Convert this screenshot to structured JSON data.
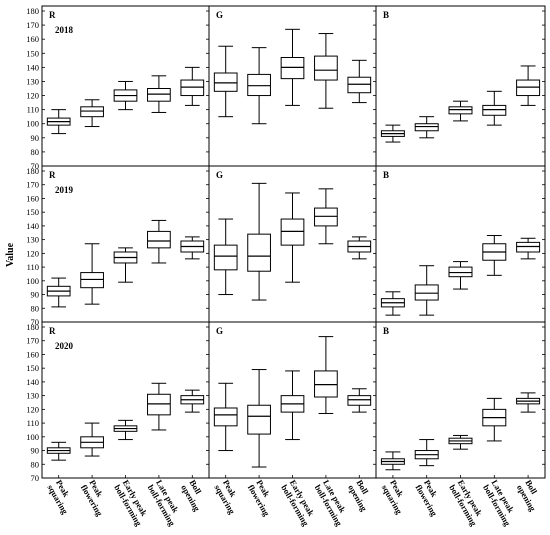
{
  "chart_data": {
    "type": "boxplot",
    "ylabel": "Value",
    "ylim": [
      70,
      180
    ],
    "yticks": [
      70,
      80,
      90,
      100,
      110,
      120,
      130,
      140,
      150,
      160,
      170,
      180
    ],
    "categories": [
      [
        "Peak",
        "squaring"
      ],
      [
        "Peak",
        "flowering"
      ],
      [
        "Early peak",
        "boll-forming"
      ],
      [
        "Late peak",
        "boll-forming"
      ],
      [
        "Boll",
        "opening"
      ]
    ],
    "rows": [
      {
        "year": "2018",
        "panels": [
          {
            "channel": "R",
            "boxes": [
              [
                93,
                99,
                101.5,
                104,
                110
              ],
              [
                98,
                105,
                109,
                112,
                117
              ],
              [
                110,
                116,
                120,
                124,
                130
              ],
              [
                108,
                116,
                121,
                125,
                134
              ],
              [
                113,
                120,
                126,
                131,
                140
              ]
            ]
          },
          {
            "channel": "G",
            "boxes": [
              [
                105,
                123,
                129,
                136,
                155
              ],
              [
                100,
                120,
                127,
                135,
                154
              ],
              [
                113,
                132,
                140,
                147,
                167
              ],
              [
                111,
                131,
                138,
                148,
                164
              ],
              [
                115,
                122,
                128,
                133,
                145
              ]
            ]
          },
          {
            "channel": "B",
            "boxes": [
              [
                87,
                91,
                93,
                95,
                99
              ],
              [
                90,
                95,
                98,
                100,
                105
              ],
              [
                102,
                107,
                110,
                112,
                116
              ],
              [
                99,
                106,
                110,
                113,
                123
              ],
              [
                113,
                120,
                126,
                131,
                141
              ]
            ]
          }
        ]
      },
      {
        "year": "2019",
        "panels": [
          {
            "channel": "R",
            "boxes": [
              [
                81,
                89,
                92.5,
                96,
                102
              ],
              [
                83,
                95,
                101,
                106,
                127
              ],
              [
                99,
                113,
                117,
                121,
                124
              ],
              [
                113,
                124,
                129,
                136,
                144
              ],
              [
                116,
                121,
                125,
                129,
                132
              ]
            ]
          },
          {
            "channel": "G",
            "boxes": [
              [
                90,
                108,
                118,
                126,
                145
              ],
              [
                86,
                107,
                118,
                134,
                171
              ],
              [
                99,
                126,
                136,
                145,
                164
              ],
              [
                127,
                140,
                147,
                153,
                167
              ],
              [
                116,
                121,
                125,
                129,
                132
              ]
            ]
          },
          {
            "channel": "B",
            "boxes": [
              [
                75,
                81,
                84,
                87,
                92
              ],
              [
                75,
                86,
                91,
                97,
                111
              ],
              [
                94,
                103,
                106,
                110,
                114
              ],
              [
                104,
                115,
                121,
                127,
                133
              ],
              [
                116,
                121,
                125,
                128,
                131
              ]
            ]
          }
        ]
      },
      {
        "year": "2020",
        "panels": [
          {
            "channel": "R",
            "boxes": [
              [
                83,
                88,
                90,
                92,
                96
              ],
              [
                86,
                92,
                96,
                100,
                110
              ],
              [
                98,
                104,
                106,
                108,
                112
              ],
              [
                105,
                116,
                124,
                131,
                139
              ],
              [
                118,
                124,
                127,
                130,
                134
              ]
            ]
          },
          {
            "channel": "G",
            "boxes": [
              [
                90,
                108,
                116,
                121,
                139
              ],
              [
                78,
                102,
                115,
                123,
                149
              ],
              [
                98,
                118,
                124,
                130,
                148
              ],
              [
                117,
                129,
                138,
                148,
                173
              ],
              [
                118,
                123,
                127,
                130,
                135
              ]
            ]
          },
          {
            "channel": "B",
            "boxes": [
              [
                76,
                80,
                82,
                84,
                89
              ],
              [
                79,
                84,
                87,
                90,
                98
              ],
              [
                91,
                95,
                97,
                99,
                101
              ],
              [
                97,
                108,
                114,
                120,
                128
              ],
              [
                118,
                124,
                126,
                128,
                132
              ]
            ]
          }
        ]
      }
    ]
  }
}
